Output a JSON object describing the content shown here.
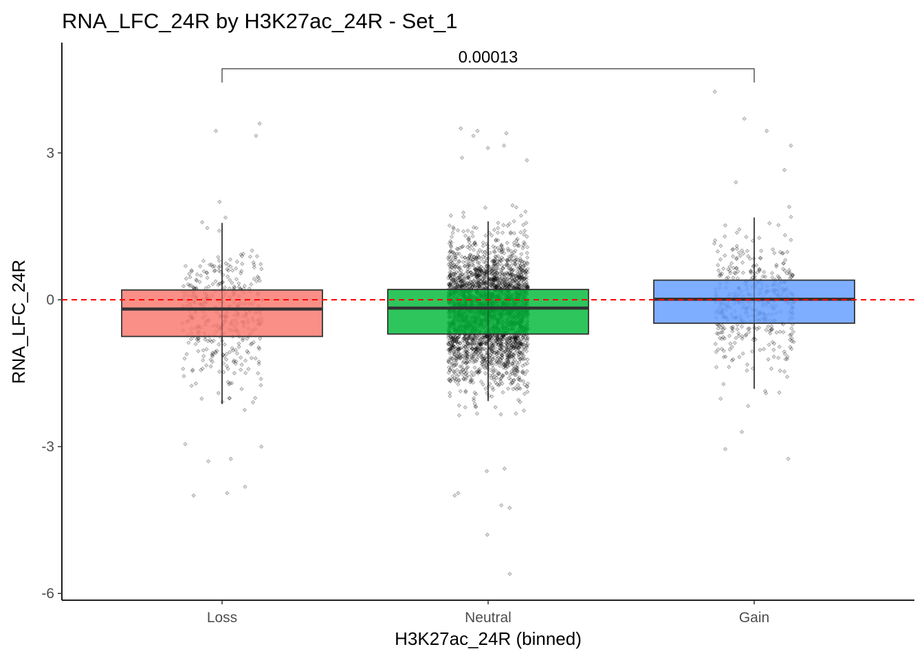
{
  "chart_data": {
    "type": "box",
    "title": "RNA_LFC_24R by H3K27ac_24R - Set_1",
    "xlabel": "H3K27ac_24R (binned)",
    "ylabel": "RNA_LFC_24R",
    "ylim": [
      -6.1,
      5.3
    ],
    "yticks": [
      3,
      0,
      -3,
      -6
    ],
    "ytick_labels": [
      "3",
      "0",
      "-3",
      "-6"
    ],
    "categories": [
      "Loss",
      "Neutral",
      "Gain"
    ],
    "colors": {
      "Loss": "#F8766D",
      "Neutral": "#00BA38",
      "Gain": "#619CFF"
    },
    "boxes": [
      {
        "category": "Loss",
        "whisker_low": -2.13,
        "q1": -0.75,
        "median": -0.19,
        "q3": 0.2,
        "whisker_high": 1.57
      },
      {
        "category": "Neutral",
        "whisker_low": -2.07,
        "q1": -0.7,
        "median": -0.17,
        "q3": 0.21,
        "whisker_high": 1.6
      },
      {
        "category": "Gain",
        "whisker_low": -1.82,
        "q1": -0.48,
        "median": 0.01,
        "q3": 0.4,
        "whisker_high": 1.68
      }
    ],
    "point_counts": {
      "Loss": 380,
      "Neutral": 3200,
      "Gain": 420
    },
    "outliers": {
      "Loss": [
        -4.0,
        -3.95,
        -3.82,
        -3.3,
        -3.25,
        -2.95,
        -3.0,
        3.6,
        3.45,
        3.35,
        2.0
      ],
      "Neutral": [
        -5.6,
        -4.8,
        -4.25,
        -4.2,
        -4.0,
        -3.95,
        -3.5,
        -3.45,
        3.5,
        3.45,
        3.4,
        3.35,
        3.15,
        3.1,
        2.9,
        2.85
      ],
      "Gain": [
        -3.25,
        -3.05,
        -2.7,
        4.25,
        3.7,
        3.45,
        3.15,
        2.65,
        2.4
      ]
    },
    "reference_line": {
      "y": 0,
      "color": "#FF0000",
      "style": "dashed"
    },
    "comparison": {
      "from": "Loss",
      "to": "Gain",
      "label": "0.00013"
    },
    "grid": false,
    "legend": "none"
  }
}
